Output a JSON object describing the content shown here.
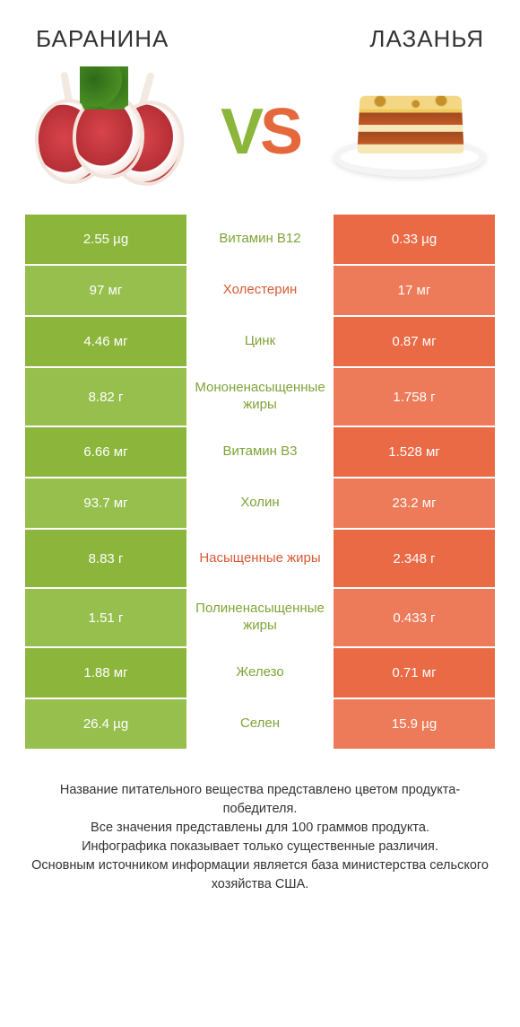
{
  "header": {
    "left_title": "БАРАНИНА",
    "right_title": "ЛАЗАНЬЯ"
  },
  "vs": {
    "v": "V",
    "s": "S"
  },
  "colors": {
    "left_winner_bg": "#8bb63b",
    "left_winner_bg_alt": "#97bf4e",
    "right_bg": "#ea6a45",
    "right_bg_alt": "#ed7a58",
    "mid_text_green": "#7fa438",
    "mid_text_orange": "#d85a34",
    "value_text": "#ffffff"
  },
  "table": {
    "type": "comparison-table",
    "rows": [
      {
        "left": "2.55 µg",
        "mid": "Витамин B12",
        "right": "0.33 µg",
        "winner": "left",
        "mid_color": "green",
        "shade": "dark"
      },
      {
        "left": "97 мг",
        "mid": "Холестерин",
        "right": "17 мг",
        "winner": "left",
        "mid_color": "orange",
        "shade": "light"
      },
      {
        "left": "4.46 мг",
        "mid": "Цинк",
        "right": "0.87 мг",
        "winner": "left",
        "mid_color": "green",
        "shade": "dark"
      },
      {
        "left": "8.82 г",
        "mid": "Мононенасыщенные жиры",
        "right": "1.758 г",
        "winner": "left",
        "mid_color": "green",
        "shade": "light"
      },
      {
        "left": "6.66 мг",
        "mid": "Витамин B3",
        "right": "1.528 мг",
        "winner": "left",
        "mid_color": "green",
        "shade": "dark"
      },
      {
        "left": "93.7 мг",
        "mid": "Холин",
        "right": "23.2 мг",
        "winner": "left",
        "mid_color": "green",
        "shade": "light"
      },
      {
        "left": "8.83 г",
        "mid": "Насыщенные жиры",
        "right": "2.348 г",
        "winner": "left",
        "mid_color": "orange",
        "shade": "dark"
      },
      {
        "left": "1.51 г",
        "mid": "Полиненасыщенные жиры",
        "right": "0.433 г",
        "winner": "left",
        "mid_color": "green",
        "shade": "light"
      },
      {
        "left": "1.88 мг",
        "mid": "Железо",
        "right": "0.71 мг",
        "winner": "left",
        "mid_color": "green",
        "shade": "dark"
      },
      {
        "left": "26.4 µg",
        "mid": "Селен",
        "right": "15.9 µg",
        "winner": "left",
        "mid_color": "green",
        "shade": "light"
      }
    ]
  },
  "footer": {
    "line1": "Название питательного вещества представлено цветом продукта-победителя.",
    "line2": "Все значения представлены для 100 граммов продукта.",
    "line3": "Инфографика показывает только существенные различия.",
    "line4": "Основным источником информации является база министерства сельского хозяйства США."
  }
}
